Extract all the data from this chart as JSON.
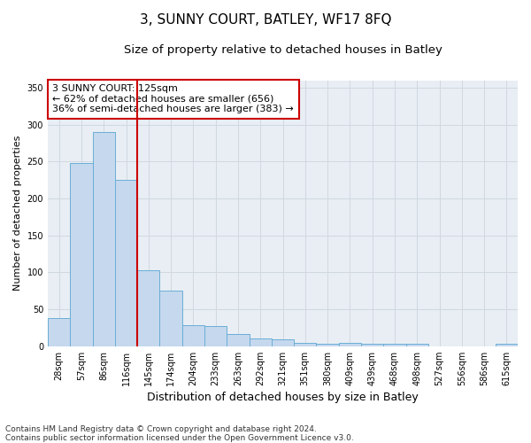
{
  "title": "3, SUNNY COURT, BATLEY, WF17 8FQ",
  "subtitle": "Size of property relative to detached houses in Batley",
  "xlabel": "Distribution of detached houses by size in Batley",
  "ylabel": "Number of detached properties",
  "bar_labels": [
    "28sqm",
    "57sqm",
    "86sqm",
    "116sqm",
    "145sqm",
    "174sqm",
    "204sqm",
    "233sqm",
    "263sqm",
    "292sqm",
    "321sqm",
    "351sqm",
    "380sqm",
    "409sqm",
    "439sqm",
    "468sqm",
    "498sqm",
    "527sqm",
    "556sqm",
    "586sqm",
    "615sqm"
  ],
  "bar_values": [
    38,
    248,
    290,
    225,
    103,
    75,
    28,
    27,
    16,
    10,
    9,
    5,
    3,
    4,
    3,
    3,
    3,
    0,
    0,
    0,
    3
  ],
  "bar_color": "#c5d8ee",
  "bar_edge_color": "#6aaed6",
  "vline_color": "#cc0000",
  "vline_x_idx": 3,
  "annotation_text": "3 SUNNY COURT: 125sqm\n← 62% of detached houses are smaller (656)\n36% of semi-detached houses are larger (383) →",
  "annotation_box_color": "#ffffff",
  "annotation_box_edge": "#cc0000",
  "ylim": [
    0,
    360
  ],
  "yticks": [
    0,
    50,
    100,
    150,
    200,
    250,
    300,
    350
  ],
  "grid_color": "#d0d8e0",
  "bg_color": "#e8eef4",
  "footer": "Contains HM Land Registry data © Crown copyright and database right 2024.\nContains public sector information licensed under the Open Government Licence v3.0.",
  "title_fontsize": 11,
  "subtitle_fontsize": 9.5,
  "xlabel_fontsize": 9,
  "ylabel_fontsize": 8,
  "tick_fontsize": 7,
  "annotation_fontsize": 8,
  "footer_fontsize": 6.5
}
